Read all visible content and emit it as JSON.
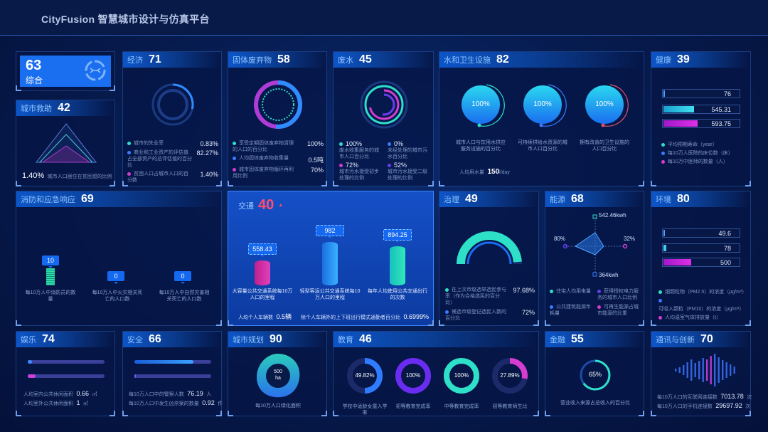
{
  "header": {
    "title": "CityFusion 智慧城市设计与仿真平台"
  },
  "summary": {
    "score": "63",
    "label": "综合",
    "icon": "hexagon-network-icon"
  },
  "colors": {
    "cyan": "#2ee0c8",
    "blue": "#3a7bff",
    "purple": "#6a3cf0",
    "pink": "#d63ccf",
    "accent": "#1568f0"
  },
  "aid": {
    "title": "城市救助",
    "score": "42",
    "value": "1.40%",
    "text": "城市人口居住在贫民窟的比例"
  },
  "economy": {
    "title": "经济",
    "score": "71",
    "items": [
      {
        "text": "城市的失业率",
        "value": "0.83%"
      },
      {
        "text": "商业和工业资产的评估值占全部资产的总评估值的百分比",
        "value": "82.27%"
      },
      {
        "text": "贫困人口占城市人口的百分数",
        "value": "1.40%"
      }
    ]
  },
  "waste": {
    "title": "固体废弃物",
    "score": "58",
    "items": [
      {
        "text": "享受定期固体废弃物清理的人口的百分比",
        "value": "100%"
      },
      {
        "text": "人均固体废弃物收集量",
        "value": "0.5吨"
      },
      {
        "text": "城市固体废弃物循环再利用比例",
        "value": "70%"
      }
    ]
  },
  "wastewater": {
    "title": "废水",
    "score": "45",
    "items": [
      {
        "value": "100%",
        "text": "废水收集服务的城市人口百分比"
      },
      {
        "value": "0%",
        "text": "未经处理的城市污水百分比"
      },
      {
        "value": "72%",
        "text": "城市污水接受初步处理的比例"
      },
      {
        "value": "52%",
        "text": "城市污水接受二级处理的比例"
      }
    ]
  },
  "water": {
    "title": "水和卫生设施",
    "score": "82",
    "items": [
      {
        "value": "100%",
        "text": "城市人口与饮用水供应服务设施的百分比"
      },
      {
        "value": "100%",
        "text": "可持续供给水资源的城市人口百分比"
      },
      {
        "value": "100%",
        "text": "拥有改善的卫生设施的人口百分比"
      }
    ],
    "usage_label": "人均用水量",
    "usage_value": "150",
    "usage_unit": "l/day"
  },
  "health": {
    "title": "健康",
    "score": "39",
    "bars": [
      {
        "value": "76",
        "fill": 0.02
      },
      {
        "value": "545.31",
        "fill": 0.4
      },
      {
        "value": "593.75",
        "fill": 0.44
      }
    ],
    "legend": [
      "平均预期寿命（year）",
      "每10万人医院的床位数（床）",
      "每10万中医师的数量（人）"
    ]
  },
  "fire": {
    "title": "消防和应急响应",
    "score": "69",
    "items": [
      {
        "value": "10",
        "text": "每10万人中消防员的数量"
      },
      {
        "value": "0",
        "text": "每10万人中火灾相关死亡的人口数"
      },
      {
        "value": "0",
        "text": "每10万人中自然灾害相关死亡的人口数"
      }
    ]
  },
  "traffic": {
    "title": "交通",
    "score": "40",
    "trend": "▲",
    "items": [
      {
        "value": "558.43",
        "text": "大容量公共交通系统每10万人口的里程"
      },
      {
        "value": "982",
        "text": "轻型客运公共交通系统每10万人口的里程"
      },
      {
        "value": "894.25",
        "text": "每年人均使用公共交通出行的次数"
      }
    ],
    "foot1_label": "人均个人车辆数",
    "foot1_value": "0.5辆",
    "foot2_label": "除个人车辆外的上下班出行模式通勤者百分比",
    "foot2_value": "0.6999%"
  },
  "governance": {
    "title": "治理",
    "score": "49",
    "gauge": 0.9768,
    "items": [
      {
        "text": "在上次市级选举选民参与率（作为合格选民的百分比）",
        "value": "97.68%"
      },
      {
        "text": "候选市级登记选民人数的百分比",
        "value": "72%"
      }
    ]
  },
  "energy": {
    "title": "能源",
    "score": "68",
    "top": "542.46kwh",
    "right": "32%",
    "bottom": "364kwh",
    "left": "80%",
    "legend": [
      "住宅人均用电量",
      "获得授权电力服务的城市人口比例",
      "公共建筑能源年耗量",
      "可再生能源占城市能源的比重"
    ]
  },
  "environment": {
    "title": "环境",
    "score": "80",
    "bars": [
      {
        "value": "49.6",
        "fill": 0.01
      },
      {
        "value": "78",
        "fill": 0.04
      },
      {
        "value": "500",
        "fill": 0.36
      }
    ],
    "legend": [
      "细颗粒物（PM2.5）的浓度（μg/m³）",
      "可吸入颗粒（PM10）的浓度（μg/m³）",
      "人均温室气体排放量（t）"
    ]
  },
  "recreation": {
    "title": "娱乐",
    "score": "74",
    "bars": [
      0.06,
      0.1
    ],
    "items": [
      {
        "text": "人均室内公共休闲面积",
        "value": "0.66",
        "unit": "㎡"
      },
      {
        "text": "人均室外公共休闲面积",
        "value": "1",
        "unit": "㎡"
      }
    ]
  },
  "safety": {
    "title": "安全",
    "score": "66",
    "bars": [
      0.77,
      0.01
    ],
    "items": [
      {
        "text": "每10万人口中的警察人数",
        "value": "76.19",
        "unit": "人"
      },
      {
        "text": "每10万人口中发生凶杀案的数量",
        "value": "0.92",
        "unit": "件"
      }
    ]
  },
  "planning": {
    "title": "城市规划",
    "score": "90",
    "value": "500",
    "unit": "ha",
    "text": "每10万人口绿化面积"
  },
  "education": {
    "title": "教育",
    "score": "46",
    "items": [
      {
        "value": "49.82%",
        "pct": 0.4982,
        "text": "学校中适龄女童入学率"
      },
      {
        "value": "100%",
        "pct": 1,
        "text": "初等教育完成率"
      },
      {
        "value": "100%",
        "pct": 1,
        "text": "中等教育完成率"
      },
      {
        "value": "27.89%",
        "pct": 0.2789,
        "text": "初等教育师生比"
      }
    ]
  },
  "finance": {
    "title": "金融",
    "score": "55",
    "value": "65%",
    "pct": 0.65,
    "text": "营业收入来源占总收入的百分比"
  },
  "telecom": {
    "title": "通讯与创新",
    "score": "70",
    "items": [
      {
        "text": "每10万人口的互联网连接数",
        "value": "7013.78",
        "unit": "次"
      },
      {
        "text": "每10万人口的手机连接数",
        "value": "29697.92",
        "unit": "次"
      }
    ]
  }
}
